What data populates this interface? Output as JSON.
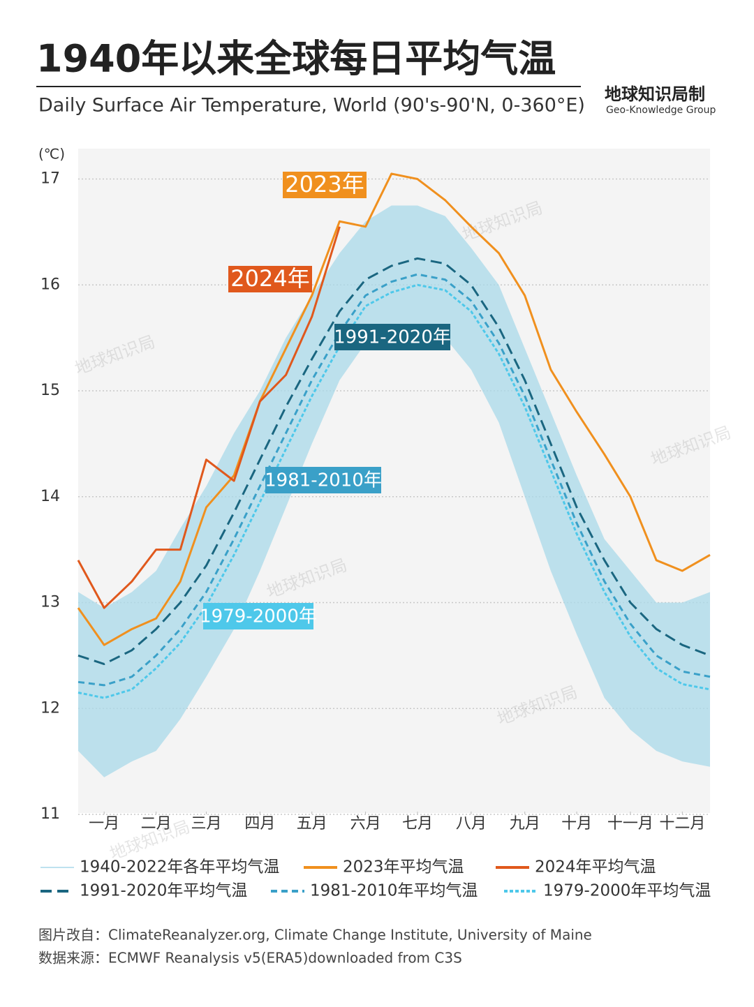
{
  "chart_data": {
    "type": "line",
    "title": "1940年以来全球每日平均气温",
    "subtitle": "Daily Surface Air Temperature, World (90's-90'N, 0-360°E)",
    "brand": "地球知识局制",
    "brand_en": "Geo-Knowledge Group",
    "watermark": "地球知识局",
    "y_unit": "(℃)",
    "source_lines": [
      "图片改自：ClimateReanalyzer.org, Climate Change Institute, University of Maine",
      "数据来源：ECMWF Reanalysis v5(ERA5)downloaded from C3S"
    ],
    "x": [
      1,
      16,
      32,
      46,
      60,
      75,
      91,
      106,
      121,
      136,
      152,
      167,
      182,
      197,
      213,
      228,
      244,
      259,
      274,
      289,
      305,
      320,
      335,
      350,
      366
    ],
    "xlim": [
      1,
      366
    ],
    "xticks": [
      {
        "value": 16,
        "label": "一月"
      },
      {
        "value": 46,
        "label": "二月"
      },
      {
        "value": 75,
        "label": "三月"
      },
      {
        "value": 106,
        "label": "四月"
      },
      {
        "value": 136,
        "label": "五月"
      },
      {
        "value": 167,
        "label": "六月"
      },
      {
        "value": 197,
        "label": "七月"
      },
      {
        "value": 228,
        "label": "八月"
      },
      {
        "value": 259,
        "label": "九月"
      },
      {
        "value": 289,
        "label": "十月"
      },
      {
        "value": 320,
        "label": "十一月"
      },
      {
        "value": 350,
        "label": "十二月"
      }
    ],
    "ylim": [
      11,
      17.3
    ],
    "yticks": [
      11,
      12,
      13,
      14,
      15,
      16,
      17
    ],
    "grid": true,
    "band": {
      "name": "1940-2022年各年平均气温",
      "color": "#a9d9ea",
      "values": [
        13.1,
        12.95,
        13.1,
        13.3,
        13.7,
        14.1,
        14.6,
        15.0,
        15.5,
        15.9,
        16.3,
        16.6,
        16.75,
        16.75,
        16.65,
        16.35,
        16.0,
        15.4,
        14.8,
        14.2,
        13.6,
        13.3,
        13.0,
        13.0,
        13.1
      ],
      "low": [
        11.6,
        11.35,
        11.5,
        11.6,
        11.9,
        12.3,
        12.75,
        13.3,
        13.9,
        14.5,
        15.1,
        15.45,
        15.55,
        15.6,
        15.5,
        15.2,
        14.7,
        14.0,
        13.3,
        12.7,
        12.1,
        11.8,
        11.6,
        11.5,
        11.45
      ]
    },
    "series": [
      {
        "name": "1979-2000年平均气温",
        "annotation": "1979-2000年",
        "color": "#4ec8ea",
        "dash": "dot",
        "values": [
          12.15,
          12.1,
          12.18,
          12.38,
          12.62,
          12.97,
          13.45,
          13.95,
          14.45,
          14.95,
          15.42,
          15.8,
          15.93,
          16.0,
          15.95,
          15.75,
          15.35,
          14.85,
          14.25,
          13.65,
          13.1,
          12.68,
          12.38,
          12.23,
          12.18
        ]
      },
      {
        "name": "1981-2010年平均气温",
        "annotation": "1981-2010年",
        "color": "#3aa0c8",
        "dash": "short",
        "values": [
          12.25,
          12.22,
          12.3,
          12.5,
          12.75,
          13.1,
          13.6,
          14.1,
          14.6,
          15.1,
          15.55,
          15.9,
          16.03,
          16.1,
          16.05,
          15.85,
          15.45,
          14.95,
          14.35,
          13.75,
          13.2,
          12.8,
          12.5,
          12.35,
          12.3
        ]
      },
      {
        "name": "1991-2020年平均气温",
        "annotation": "1991-2020年",
        "color": "#1a6680",
        "dash": "long",
        "values": [
          12.5,
          12.42,
          12.55,
          12.75,
          13.0,
          13.35,
          13.85,
          14.35,
          14.85,
          15.3,
          15.75,
          16.05,
          16.18,
          16.25,
          16.2,
          16.0,
          15.6,
          15.1,
          14.5,
          13.9,
          13.4,
          13.0,
          12.75,
          12.6,
          12.5
        ]
      },
      {
        "name": "2023年平均气温",
        "annotation": "2023年",
        "color": "#f0901e",
        "dash": "solid",
        "values": [
          12.95,
          12.6,
          12.75,
          12.85,
          13.2,
          13.9,
          14.2,
          14.9,
          15.4,
          15.9,
          16.6,
          16.55,
          17.05,
          17.0,
          16.8,
          16.55,
          16.3,
          15.9,
          15.2,
          14.8,
          14.4,
          14.0,
          13.4,
          13.3,
          13.45
        ]
      },
      {
        "name": "2024年平均气温",
        "annotation": "2024年",
        "color": "#e0581c",
        "dash": "solid",
        "values": [
          13.4,
          12.95,
          13.2,
          13.5,
          13.5,
          14.35,
          14.15,
          14.9,
          15.15,
          15.7,
          16.55,
          null,
          null,
          null,
          null,
          null,
          null,
          null,
          null,
          null,
          null,
          null,
          null,
          null,
          null
        ]
      }
    ]
  }
}
